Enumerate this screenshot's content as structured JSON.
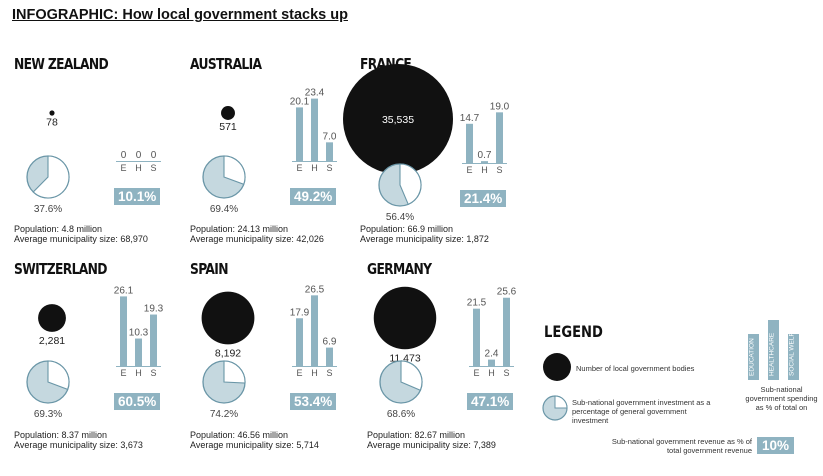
{
  "title": "INFOGRAPHIC: How local government stacks up",
  "colors": {
    "accent": "#8fb3c1",
    "accent_dark": "#6a96a7",
    "dot": "#111111"
  },
  "chart_data": [
    {
      "type": "bar",
      "country": "NEW ZEALAND",
      "local_government_bodies": 78,
      "investment_pct_label": "37.6%",
      "investment_pct": 37.6,
      "categories": [
        "E",
        "H",
        "S"
      ],
      "values": [
        0,
        0,
        0
      ],
      "value_labels": [
        "0",
        "0",
        "0"
      ],
      "revenue_label": "10.1%",
      "population": "Population: 4.8 million",
      "avg_size": "Average municipality size: 68,970"
    },
    {
      "type": "bar",
      "country": "AUSTRALIA",
      "local_government_bodies": 571,
      "investment_pct_label": "69.4%",
      "investment_pct": 69.4,
      "categories": [
        "E",
        "H",
        "S"
      ],
      "values": [
        20.1,
        23.4,
        7.0
      ],
      "value_labels": [
        "20.1",
        "23.4",
        "7.0"
      ],
      "revenue_label": "49.2%",
      "population": "Population: 24.13 million",
      "avg_size": "Average municipality size: 42,026"
    },
    {
      "type": "bar",
      "country": "FRANCE",
      "local_government_bodies": 35535,
      "bodies_label": "35,535",
      "investment_pct_label": "56.4%",
      "investment_pct": 56.4,
      "categories": [
        "E",
        "H",
        "S"
      ],
      "values": [
        14.7,
        0.7,
        19.0
      ],
      "value_labels": [
        "14.7",
        "0.7",
        "19.0"
      ],
      "revenue_label": "21.4%",
      "population": "Population: 66.9 million",
      "avg_size": "Average municipality size: 1,872"
    },
    {
      "type": "bar",
      "country": "SWITZERLAND",
      "local_government_bodies": 2281,
      "bodies_label": "2,281",
      "investment_pct_label": "69.3%",
      "investment_pct": 69.3,
      "categories": [
        "E",
        "H",
        "S"
      ],
      "values": [
        26.1,
        10.3,
        19.3
      ],
      "value_labels": [
        "26.1",
        "10.3",
        "19.3"
      ],
      "revenue_label": "60.5%",
      "population": "Population: 8.37 million",
      "avg_size": "Average municipality size: 3,673"
    },
    {
      "type": "bar",
      "country": "SPAIN",
      "local_government_bodies": 8192,
      "bodies_label": "8,192",
      "investment_pct_label": "74.2%",
      "investment_pct": 74.2,
      "categories": [
        "E",
        "H",
        "S"
      ],
      "values": [
        17.9,
        26.5,
        6.9
      ],
      "value_labels": [
        "17.9",
        "26.5",
        "6.9"
      ],
      "revenue_label": "53.4%",
      "population": "Population: 46.56 million",
      "avg_size": "Average municipality size: 5,714"
    },
    {
      "type": "bar",
      "country": "GERMANY",
      "local_government_bodies": 11473,
      "bodies_label": "11,473",
      "investment_pct_label": "68.6%",
      "investment_pct": 68.6,
      "categories": [
        "E",
        "H",
        "S"
      ],
      "values": [
        21.5,
        2.4,
        25.6
      ],
      "value_labels": [
        "21.5",
        "2.4",
        "25.6"
      ],
      "revenue_label": "47.1%",
      "population": "Population: 82.67 million",
      "avg_size": "Average municipality size: 7,389"
    }
  ],
  "legend": {
    "title": "LEGEND",
    "bodies_text": "Number of local government bodies",
    "pie_text": "Sub-national government investment as a percentage of general government investment",
    "bar_labels": [
      "EDUCATION",
      "HEALTHCARE",
      "SOCIAL WELFARE"
    ],
    "bar_text": "Sub-national government spending as % of total on",
    "revenue_text": "Sub-national government revenue as % of total government revenue",
    "revenue_box": "10%"
  }
}
